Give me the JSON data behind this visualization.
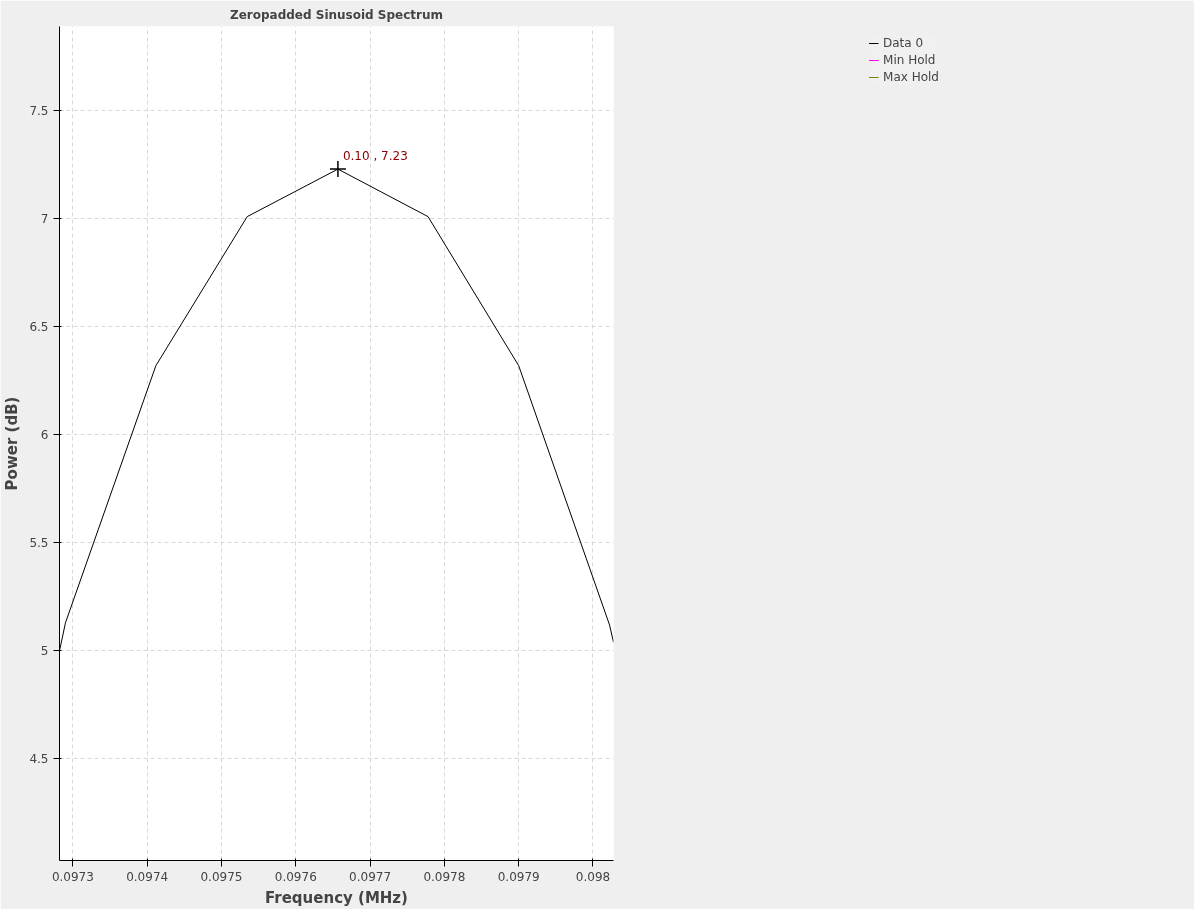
{
  "chart_data": {
    "type": "line",
    "title": "Zeropadded Sinusoid Spectrum",
    "xlabel": "Frequency (MHz)",
    "ylabel": "Power (dB)",
    "x": [
      0.097282,
      0.09729,
      0.0974117,
      0.0975346,
      0.0976567,
      0.097778,
      0.0979,
      0.0980223,
      0.0980276
    ],
    "series": [
      {
        "name": "Data 0",
        "color": "#000000",
        "values": [
          5.0,
          5.13,
          6.32,
          7.01,
          7.23,
          7.01,
          6.32,
          5.12,
          5.04
        ]
      },
      {
        "name": "Min Hold",
        "color": "#ff00ff",
        "values": [
          null,
          null,
          null,
          null,
          null,
          null,
          null,
          null,
          null
        ]
      },
      {
        "name": "Max Hold",
        "color": "#808000",
        "values": [
          null,
          null,
          null,
          null,
          null,
          null,
          null,
          null,
          null
        ]
      }
    ],
    "xlim": [
      0.097282,
      0.0980276
    ],
    "ylim": [
      4.03,
      7.89
    ],
    "xticks": [
      0.0973,
      0.0974,
      0.0975,
      0.0976,
      0.0977,
      0.0978,
      0.0979,
      0.098
    ],
    "yticks": [
      4.5,
      5,
      5.5,
      6,
      6.5,
      7,
      7.5
    ],
    "annotations": [
      {
        "text": "0.10 , 7.23",
        "x": 0.0976567,
        "y": 7.23
      }
    ],
    "grid": true,
    "legend": "top right",
    "line_style": "solid",
    "marker": "none"
  }
}
